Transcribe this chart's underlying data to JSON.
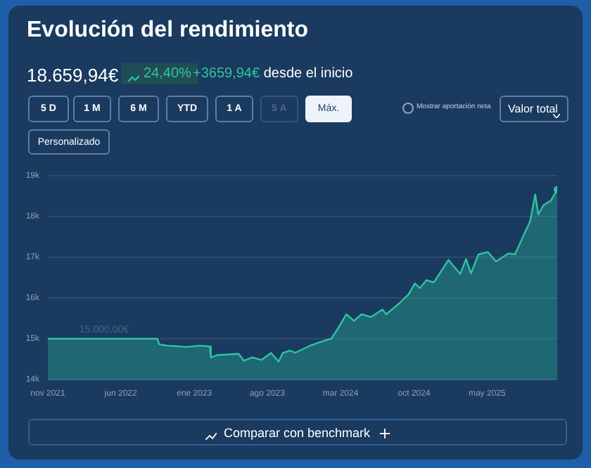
{
  "chart_data": {
    "type": "area",
    "title": "Evolución del rendimiento",
    "subtitle": "18.659,94€",
    "annotations": [
      "24,40%",
      "+3659,94€ desde el inicio",
      "5 D",
      "1 M",
      "6 M",
      "YTD",
      "1 A",
      "5 A",
      "Máx.",
      "Personalizado",
      "Mostrar aportación neta",
      "Valor total",
      "Comparar con benchmark",
      {
        "text": "15.000,00€",
        "x": "2022-02-01",
        "y": 15000
      }
    ],
    "x": [
      "2021-11-01",
      "2022-09-15",
      "2022-09-21",
      "2022-10-15",
      "2022-12-10",
      "2023-01-18",
      "2023-02-15",
      "2023-02-18",
      "2023-03-10",
      "2023-05-10",
      "2023-05-25",
      "2023-06-18",
      "2023-07-15",
      "2023-08-12",
      "2023-09-03",
      "2023-09-15",
      "2023-10-06",
      "2023-10-21",
      "2023-12-03",
      "2024-01-12",
      "2024-02-03",
      "2024-02-21",
      "2024-03-18",
      "2024-04-09",
      "2024-05-01",
      "2024-05-28",
      "2024-07-01",
      "2024-07-12",
      "2024-08-18",
      "2024-09-15",
      "2024-10-03",
      "2024-10-18",
      "2024-11-06",
      "2024-11-27",
      "2025-01-09",
      "2025-02-12",
      "2025-03-01",
      "2025-03-15",
      "2025-04-06",
      "2025-05-03",
      "2025-05-27",
      "2025-07-03",
      "2025-07-21",
      "2025-08-18",
      "2025-09-03",
      "2025-09-18",
      "2025-09-27",
      "2025-10-12",
      "2025-11-03",
      "2025-11-21"
    ],
    "values": [
      15000,
      15000,
      14860,
      14830,
      14800,
      14830,
      14810,
      14540,
      14600,
      14630,
      14460,
      14540,
      14480,
      14650,
      14440,
      14650,
      14710,
      14655,
      14828,
      14945,
      15000,
      15231,
      15600,
      15438,
      15600,
      15531,
      15714,
      15600,
      15862,
      16093,
      16357,
      16241,
      16438,
      16380,
      16931,
      16586,
      16955,
      16600,
      17069,
      17128,
      16897,
      17093,
      17069,
      17586,
      17876,
      18541,
      18048,
      18276,
      18393,
      18660
    ],
    "color": "#2ec4a0",
    "xlim": [
      "2021-11-01",
      "2025-11-21"
    ],
    "xticks": [
      {
        "value": "2021-11-01",
        "label": "nov 2021"
      },
      {
        "value": "2022-06-01",
        "label": "jun 2022"
      },
      {
        "value": "2023-01-01",
        "label": "ene 2023"
      },
      {
        "value": "2023-08-01",
        "label": "ago 2023"
      },
      {
        "value": "2024-03-01",
        "label": "mar 2024"
      },
      {
        "value": "2024-10-01",
        "label": "oct 2024"
      },
      {
        "value": "2025-05-01",
        "label": "may 2025"
      }
    ],
    "ylim": [
      14000,
      19000
    ],
    "yticks": [
      {
        "value": 14000,
        "label": "14k"
      },
      {
        "value": 15000,
        "label": "15k"
      },
      {
        "value": 16000,
        "label": "16k"
      },
      {
        "value": 17000,
        "label": "17k"
      },
      {
        "value": 18000,
        "label": "18k"
      },
      {
        "value": 19000,
        "label": "19k"
      }
    ],
    "grid": "y",
    "legend": false
  }
}
